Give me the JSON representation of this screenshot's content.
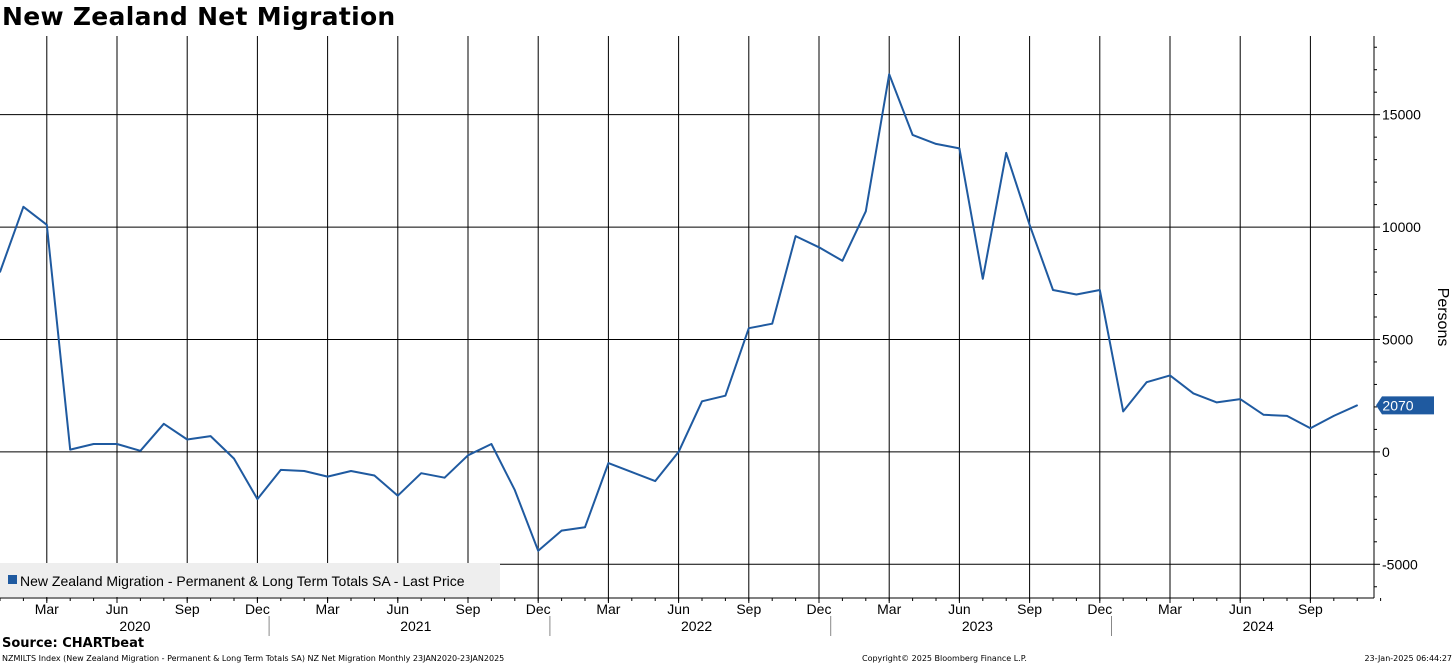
{
  "title": "New Zealand Net Migration",
  "footer": {
    "source": "Source: CHARTbeat",
    "meta": "NZMILTS Index (New Zealand Migration - Permanent & Long Term Totals SA) NZ Net Migration  Monthly 23JAN2020-23JAN2025",
    "copyright": "Copyright© 2025 Bloomberg Finance L.P.",
    "timestamp": "23-Jan-2025 06:44:27"
  },
  "chart_data": {
    "type": "line",
    "ylabel": "Persons",
    "ylim": [
      -6500,
      18500
    ],
    "yticks": [
      -5000,
      0,
      5000,
      10000,
      15000
    ],
    "ytick_labels": [
      "-5000",
      "0",
      "5000",
      "10000",
      "15000"
    ],
    "x_range": [
      "2020-01",
      "2024-12"
    ],
    "month_ticks": [
      {
        "x": "2020-03",
        "label": "Mar"
      },
      {
        "x": "2020-06",
        "label": "Jun"
      },
      {
        "x": "2020-09",
        "label": "Sep"
      },
      {
        "x": "2020-12",
        "label": "Dec"
      },
      {
        "x": "2021-03",
        "label": "Mar"
      },
      {
        "x": "2021-06",
        "label": "Jun"
      },
      {
        "x": "2021-09",
        "label": "Sep"
      },
      {
        "x": "2021-12",
        "label": "Dec"
      },
      {
        "x": "2022-03",
        "label": "Mar"
      },
      {
        "x": "2022-06",
        "label": "Jun"
      },
      {
        "x": "2022-09",
        "label": "Sep"
      },
      {
        "x": "2022-12",
        "label": "Dec"
      },
      {
        "x": "2023-03",
        "label": "Mar"
      },
      {
        "x": "2023-06",
        "label": "Jun"
      },
      {
        "x": "2023-09",
        "label": "Sep"
      },
      {
        "x": "2023-12",
        "label": "Dec"
      },
      {
        "x": "2024-03",
        "label": "Mar"
      },
      {
        "x": "2024-06",
        "label": "Jun"
      },
      {
        "x": "2024-09",
        "label": "Sep"
      }
    ],
    "year_labels": [
      {
        "x": "2020-06",
        "label": "2020"
      },
      {
        "x": "2021-06",
        "label": "2021"
      },
      {
        "x": "2022-06",
        "label": "2022"
      },
      {
        "x": "2023-06",
        "label": "2023"
      },
      {
        "x": "2024-06",
        "label": "2024"
      }
    ],
    "year_separators": [
      "2020-12",
      "2021-12",
      "2022-12",
      "2023-12"
    ],
    "series": [
      {
        "name": "New Zealand Migration - Permanent & Long Term Totals SA - Last Price",
        "color": "#1f5aa0",
        "x": [
          "2020-01",
          "2020-02",
          "2020-03",
          "2020-04",
          "2020-05",
          "2020-06",
          "2020-07",
          "2020-08",
          "2020-09",
          "2020-10",
          "2020-11",
          "2020-12",
          "2021-01",
          "2021-02",
          "2021-03",
          "2021-04",
          "2021-05",
          "2021-06",
          "2021-07",
          "2021-08",
          "2021-09",
          "2021-10",
          "2021-11",
          "2021-12",
          "2022-01",
          "2022-02",
          "2022-03",
          "2022-04",
          "2022-05",
          "2022-06",
          "2022-07",
          "2022-08",
          "2022-09",
          "2022-10",
          "2022-11",
          "2022-12",
          "2023-01",
          "2023-02",
          "2023-03",
          "2023-04",
          "2023-05",
          "2023-06",
          "2023-07",
          "2023-08",
          "2023-09",
          "2023-10",
          "2023-11",
          "2023-12",
          "2024-01",
          "2024-02",
          "2024-03",
          "2024-04",
          "2024-05",
          "2024-06",
          "2024-07",
          "2024-08",
          "2024-09",
          "2024-10",
          "2024-11"
        ],
        "values": [
          8000,
          10900,
          10100,
          100,
          350,
          350,
          50,
          1250,
          550,
          700,
          -300,
          -2100,
          -800,
          -850,
          -1100,
          -850,
          -1050,
          -1950,
          -950,
          -1150,
          -150,
          350,
          -1700,
          -4400,
          -3500,
          -3350,
          -500,
          -900,
          -1300,
          0,
          2250,
          2500,
          5500,
          5700,
          9600,
          9100,
          8500,
          10700,
          16800,
          14100,
          13700,
          13500,
          7700,
          13300,
          10100,
          7200,
          7000,
          7200,
          1800,
          3100,
          3400,
          2600,
          2200,
          2350,
          1650,
          1600,
          1050,
          1600,
          2070
        ]
      }
    ],
    "last_value_label": "2070",
    "legend": {
      "position": "bottom-left"
    },
    "grid": true
  }
}
